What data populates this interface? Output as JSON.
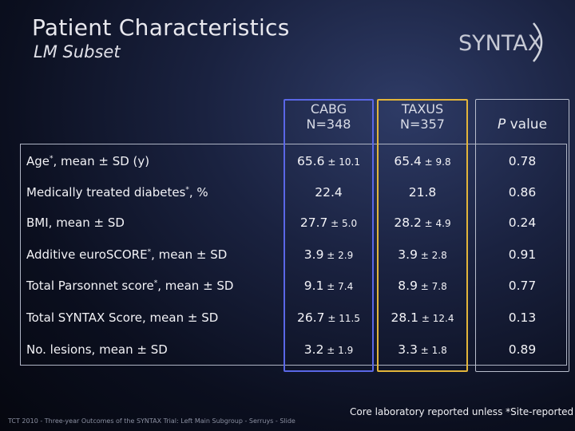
{
  "title": "Patient Characteristics",
  "subtitle": "LM Subset",
  "logo": "SYNTAX",
  "columns": {
    "cabg": {
      "name": "CABG",
      "n": "N=348"
    },
    "taxus": {
      "name": "TAXUS",
      "n": "N=357"
    },
    "p": {
      "italic": "P",
      "rest": " value"
    }
  },
  "rows": [
    {
      "label": "Age",
      "sup": "*",
      "label_rest": ", mean ± SD (y)",
      "cabg": "65.6",
      "cabg_sd": " ± 10.1",
      "taxus": "65.4",
      "taxus_sd": " ± 9.8",
      "p": "0.78"
    },
    {
      "label": "Medically treated diabetes",
      "sup": "*",
      "label_rest": ", %",
      "cabg": "22.4",
      "cabg_sd": "",
      "taxus": "21.8",
      "taxus_sd": "",
      "p": "0.86"
    },
    {
      "label": "BMI, mean ± SD",
      "sup": "",
      "label_rest": "",
      "cabg": "27.7",
      "cabg_sd": " ± 5.0",
      "taxus": "28.2",
      "taxus_sd": " ± 4.9",
      "p": "0.24"
    },
    {
      "label": "Additive euroSCORE",
      "sup": "*",
      "label_rest": ", mean ± SD",
      "cabg": "3.9",
      "cabg_sd": " ± 2.9",
      "taxus": "3.9",
      "taxus_sd": " ± 2.8",
      "p": "0.91"
    },
    {
      "label": "Total Parsonnet score",
      "sup": "*",
      "label_rest": ", mean ± SD",
      "cabg": "9.1",
      "cabg_sd": " ± 7.4",
      "taxus": "8.9",
      "taxus_sd": " ± 7.8",
      "p": "0.77"
    },
    {
      "label": "Total SYNTAX Score, mean ± SD",
      "sup": "",
      "label_rest": "",
      "cabg": "26.7",
      "cabg_sd": " ± 11.5",
      "taxus": "28.1",
      "taxus_sd": " ± 12.4",
      "p": "0.13"
    },
    {
      "label": "No. lesions, mean ± SD",
      "sup": "",
      "label_rest": "",
      "cabg": "3.2",
      "cabg_sd": " ± 1.9",
      "taxus": "3.3",
      "taxus_sd": " ± 1.8",
      "p": "0.89"
    }
  ],
  "note": "Core laboratory reported unless *Site-reported",
  "footer": "TCT 2010 - Three-year Outcomes of the SYNTAX Trial: Left Main Subgroup - Serruys - Slide",
  "colors": {
    "cabg_box": "#5a67e6",
    "taxus_box": "#e3b53a"
  }
}
